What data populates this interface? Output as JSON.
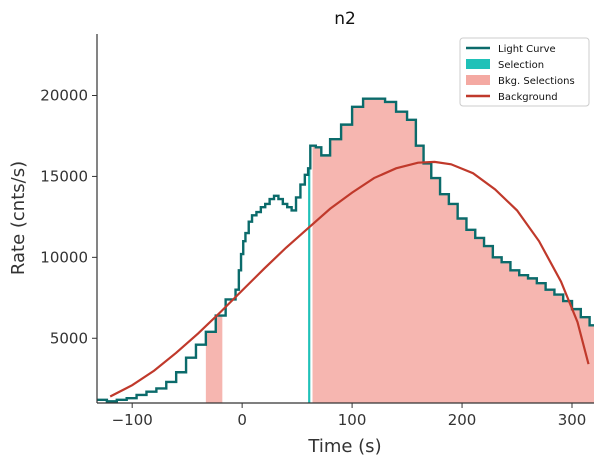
{
  "chart_data": {
    "type": "line",
    "title": "n2",
    "xlabel": "Time (s)",
    "ylabel": "Rate (cnts/s)",
    "xlim": [
      -132,
      320
    ],
    "ylim": [
      1000,
      23800
    ],
    "xticks": [
      -100,
      0,
      100,
      200,
      300
    ],
    "xtick_labels": [
      "−100",
      "0",
      "100",
      "200",
      "300"
    ],
    "yticks": [
      5000,
      10000,
      15000,
      20000
    ],
    "ytick_labels": [
      "5000",
      "10000",
      "15000",
      "20000"
    ],
    "grid": false,
    "legend_position": "top-right",
    "colors": {
      "light_curve": "#0b6b6b",
      "selection": "#20c1b8",
      "bkg_selection": "#f4a9a2",
      "background": "#c0392b",
      "axis": "#333333"
    },
    "legend": [
      {
        "label": "Light Curve",
        "kind": "line",
        "color": "#0b6b6b"
      },
      {
        "label": "Selection",
        "kind": "patch",
        "color": "#20c1b8"
      },
      {
        "label": "Bkg. Selections",
        "kind": "patch",
        "color": "#f4a9a2"
      },
      {
        "label": "Background",
        "kind": "line",
        "color": "#c0392b"
      }
    ],
    "series": [
      {
        "name": "Light Curve",
        "step": true,
        "points": [
          [
            -132,
            1200
          ],
          [
            -123,
            1100
          ],
          [
            -114,
            1200
          ],
          [
            -105,
            1300
          ],
          [
            -96,
            1500
          ],
          [
            -87,
            1700
          ],
          [
            -78,
            1900
          ],
          [
            -69,
            2300
          ],
          [
            -60,
            2900
          ],
          [
            -51,
            3800
          ],
          [
            -42,
            4600
          ],
          [
            -33,
            5400
          ],
          [
            -24,
            6400
          ],
          [
            -15,
            7400
          ],
          [
            -6,
            8000
          ],
          [
            -3,
            9200
          ],
          [
            -1,
            10200
          ],
          [
            1,
            11000
          ],
          [
            3,
            11500
          ],
          [
            6,
            12200
          ],
          [
            9,
            12600
          ],
          [
            13,
            12800
          ],
          [
            17,
            13100
          ],
          [
            21,
            13300
          ],
          [
            25,
            13600
          ],
          [
            29,
            13800
          ],
          [
            33,
            13600
          ],
          [
            37,
            13300
          ],
          [
            41,
            13100
          ],
          [
            45,
            12900
          ],
          [
            49,
            13700
          ],
          [
            53,
            14500
          ],
          [
            57,
            15100
          ],
          [
            60,
            15500
          ],
          [
            62,
            16900
          ],
          [
            67,
            16800
          ],
          [
            72,
            16300
          ],
          [
            80,
            17300
          ],
          [
            90,
            18200
          ],
          [
            100,
            19300
          ],
          [
            110,
            19800
          ],
          [
            120,
            19800
          ],
          [
            130,
            19600
          ],
          [
            140,
            19000
          ],
          [
            150,
            18500
          ],
          [
            158,
            16900
          ],
          [
            165,
            15800
          ],
          [
            172,
            14900
          ],
          [
            180,
            13900
          ],
          [
            188,
            13300
          ],
          [
            196,
            12400
          ],
          [
            204,
            11700
          ],
          [
            212,
            11200
          ],
          [
            220,
            10700
          ],
          [
            228,
            10000
          ],
          [
            236,
            9700
          ],
          [
            244,
            9200
          ],
          [
            252,
            8900
          ],
          [
            260,
            8700
          ],
          [
            268,
            8400
          ],
          [
            276,
            8000
          ],
          [
            284,
            7700
          ],
          [
            292,
            7300
          ],
          [
            300,
            6800
          ],
          [
            308,
            6300
          ],
          [
            316,
            5800
          ],
          [
            320,
            5800
          ]
        ]
      },
      {
        "name": "Background",
        "step": false,
        "points": [
          [
            -120,
            1400
          ],
          [
            -100,
            2100
          ],
          [
            -80,
            3000
          ],
          [
            -60,
            4100
          ],
          [
            -40,
            5300
          ],
          [
            -20,
            6600
          ],
          [
            0,
            7950
          ],
          [
            20,
            9300
          ],
          [
            40,
            10600
          ],
          [
            60,
            11800
          ],
          [
            80,
            13000
          ],
          [
            100,
            14000
          ],
          [
            120,
            14900
          ],
          [
            140,
            15500
          ],
          [
            160,
            15850
          ],
          [
            175,
            15900
          ],
          [
            190,
            15750
          ],
          [
            210,
            15200
          ],
          [
            230,
            14200
          ],
          [
            250,
            12900
          ],
          [
            270,
            11000
          ],
          [
            290,
            8500
          ],
          [
            305,
            6000
          ],
          [
            315,
            3400
          ]
        ]
      }
    ],
    "bkg_selections": [
      [
        -33,
        -18
      ],
      [
        64,
        320
      ]
    ],
    "selection": [
      [
        60,
        62
      ]
    ]
  }
}
